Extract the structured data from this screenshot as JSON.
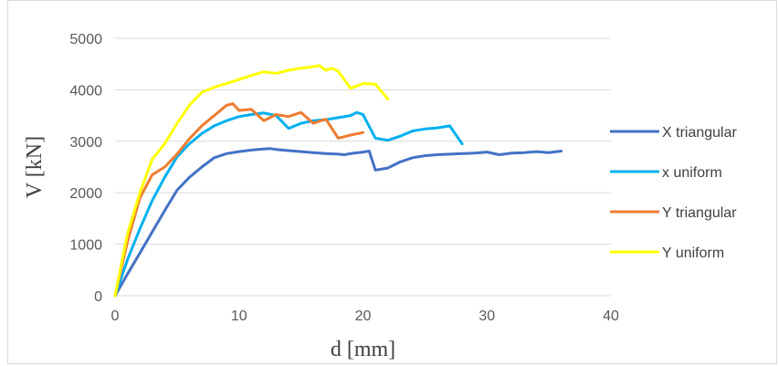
{
  "chart_data": {
    "type": "line",
    "xlabel": "d [mm]",
    "ylabel": "V [kN]",
    "xlim": [
      0,
      40
    ],
    "ylim": [
      0,
      5000
    ],
    "xticks": [
      0,
      10,
      20,
      30,
      40
    ],
    "yticks": [
      0,
      1000,
      2000,
      3000,
      4000,
      5000
    ],
    "grid": "horizontal major gridlines",
    "legend_position": "right",
    "series": [
      {
        "name": "X triangular",
        "color": "#4472C4",
        "x": [
          0,
          1,
          2,
          3,
          4,
          5,
          6,
          7,
          8,
          9,
          10,
          11,
          12,
          12.5,
          13,
          14,
          15,
          16,
          17,
          18,
          18.5,
          19,
          20,
          20.5,
          21,
          22,
          23,
          24,
          25,
          26,
          27,
          28,
          29,
          30,
          31,
          32,
          33,
          34,
          35,
          36
        ],
        "y": [
          0,
          420,
          830,
          1240,
          1650,
          2050,
          2300,
          2500,
          2680,
          2760,
          2800,
          2830,
          2850,
          2860,
          2840,
          2820,
          2800,
          2780,
          2760,
          2750,
          2740,
          2760,
          2790,
          2810,
          2440,
          2480,
          2600,
          2680,
          2720,
          2740,
          2750,
          2760,
          2770,
          2790,
          2740,
          2770,
          2780,
          2800,
          2780,
          2810
        ]
      },
      {
        "name": "x uniform",
        "color": "#00B0F0",
        "x": [
          0,
          1,
          2,
          3,
          4,
          5,
          6,
          7,
          8,
          9,
          10,
          11,
          12,
          13,
          14,
          15,
          16,
          17,
          18,
          19,
          19.5,
          20,
          21,
          22,
          23,
          24,
          25,
          26,
          27,
          28
        ],
        "y": [
          0,
          700,
          1300,
          1850,
          2300,
          2700,
          2950,
          3150,
          3300,
          3400,
          3480,
          3520,
          3550,
          3500,
          3250,
          3350,
          3400,
          3420,
          3460,
          3500,
          3560,
          3520,
          3060,
          3020,
          3100,
          3200,
          3240,
          3260,
          3300,
          2950
        ]
      },
      {
        "name": "Y triangular",
        "color": "#ED7D31",
        "x": [
          0,
          1,
          2,
          3,
          4,
          5,
          6,
          7,
          8,
          9,
          9.5,
          10,
          11,
          12,
          13,
          14,
          15,
          16,
          17,
          18,
          19,
          20
        ],
        "y": [
          0,
          1050,
          1900,
          2350,
          2500,
          2750,
          3050,
          3300,
          3500,
          3700,
          3730,
          3600,
          3620,
          3400,
          3520,
          3480,
          3560,
          3350,
          3430,
          3060,
          3120,
          3170
        ]
      },
      {
        "name": "Y uniform",
        "color": "#FFFF00",
        "x": [
          0,
          1,
          2,
          3,
          4,
          5,
          6,
          7,
          8,
          9,
          10,
          11,
          12,
          13,
          14,
          15,
          16,
          16.5,
          17,
          17.5,
          18,
          19,
          20,
          21,
          22
        ],
        "y": [
          0,
          1200,
          2000,
          2650,
          2950,
          3350,
          3700,
          3950,
          4050,
          4120,
          4200,
          4280,
          4350,
          4320,
          4380,
          4420,
          4450,
          4470,
          4380,
          4420,
          4360,
          4030,
          4120,
          4110,
          3820
        ]
      }
    ]
  }
}
